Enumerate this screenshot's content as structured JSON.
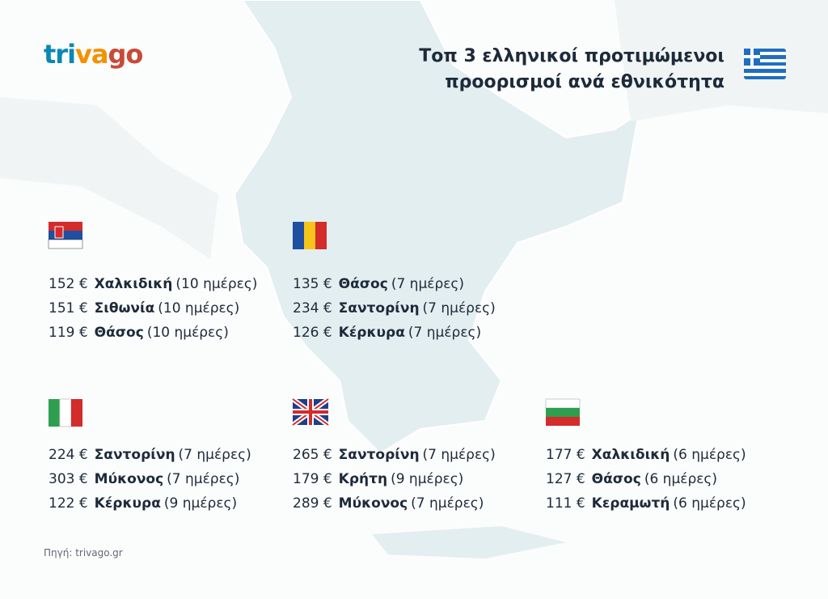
{
  "logo": [
    "tri",
    "va",
    "go"
  ],
  "title": [
    "Τοπ 3 ελληνικοί προτιμώμενοι",
    "προορισμοί ανά εθνικότητα"
  ],
  "groups": [
    {
      "rows": [
        [
          "152 €",
          "Χαλκιδική",
          "(10 ημέρες)"
        ],
        [
          "151 €",
          "Σιθωνία",
          "(10 ημέρες)"
        ],
        [
          "119 €",
          "Θάσος",
          "(10 ημέρες)"
        ]
      ]
    },
    {
      "rows": [
        [
          "135 €",
          "Θάσος",
          "(7 ημέρες)"
        ],
        [
          "234 €",
          "Σαντορίνη",
          "(7 ημέρες)"
        ],
        [
          "126 €",
          "Κέρκυρα",
          "(7 ημέρες)"
        ]
      ]
    },
    {
      "rows": [
        [
          "224 €",
          "Σαντορίνη",
          "(7 ημέρες)"
        ],
        [
          "303 €",
          "Μύκονος",
          "(7 ημέρες)"
        ],
        [
          "122 €",
          "Κέρκυρα",
          "(9 ημέρες)"
        ]
      ]
    },
    {
      "rows": [
        [
          "265 €",
          "Σαντορίνη",
          "(7 ημέρες)"
        ],
        [
          "179 €",
          "Κρήτη",
          "(9 ημέρες)"
        ],
        [
          "289 €",
          "Μύκονος",
          "(7 ημέρες)"
        ]
      ]
    },
    {
      "rows": [
        [
          "177 €",
          "Χαλκιδική",
          "(6 ημέρες)"
        ],
        [
          "127 €",
          "Θάσος",
          "(6 ημέρες)"
        ],
        [
          "111 €",
          "Κεραμωτή",
          "(6 ημέρες)"
        ]
      ]
    }
  ],
  "source": "Πηγή: trivago.gr"
}
